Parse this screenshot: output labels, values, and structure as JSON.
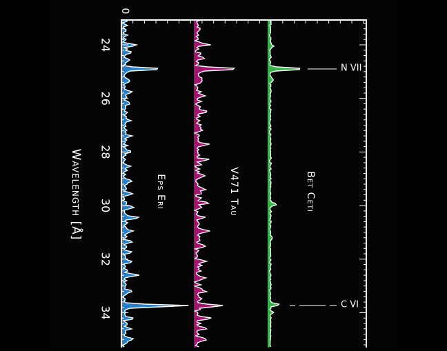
{
  "colors": {
    "background": "#000000",
    "frame": "#ffffff",
    "eps_eri": "#2a7fc9",
    "v471_tau": "#a3146e",
    "bet_ceti": "#38b24a",
    "line": "#ffffff"
  },
  "chart_data": {
    "type": "line",
    "orientation": "rotated-90",
    "xlabel": "Wavelength [Å]",
    "ylabel": "",
    "xlim": [
      23.0,
      35.2
    ],
    "x_ticks": [
      "24",
      "26",
      "28",
      "30",
      "32",
      "34"
    ],
    "y_ticks": [
      "0"
    ],
    "grid": false,
    "series": [
      {
        "name": "Eps Eri",
        "offset": 0,
        "peaks": [
          {
            "x": 24.02,
            "h": 18
          },
          {
            "x": 24.28,
            "h": 10
          },
          {
            "x": 24.6,
            "h": 8
          },
          {
            "x": 24.9,
            "h": 56
          },
          {
            "x": 25.35,
            "h": 9
          },
          {
            "x": 25.75,
            "h": 8
          },
          {
            "x": 26.2,
            "h": 9
          },
          {
            "x": 26.8,
            "h": 8
          },
          {
            "x": 27.4,
            "h": 8
          },
          {
            "x": 28.0,
            "h": 8
          },
          {
            "x": 28.55,
            "h": 8
          },
          {
            "x": 29.1,
            "h": 10
          },
          {
            "x": 29.55,
            "h": 12
          },
          {
            "x": 30.05,
            "h": 14
          },
          {
            "x": 30.45,
            "h": 20
          },
          {
            "x": 30.95,
            "h": 10
          },
          {
            "x": 31.35,
            "h": 9
          },
          {
            "x": 31.75,
            "h": 8
          },
          {
            "x": 32.1,
            "h": 11
          },
          {
            "x": 32.6,
            "h": 20
          },
          {
            "x": 33.2,
            "h": 12
          },
          {
            "x": 33.74,
            "h": 92
          },
          {
            "x": 34.2,
            "h": 12
          },
          {
            "x": 34.6,
            "h": 9
          },
          {
            "x": 35.0,
            "h": 12
          }
        ]
      },
      {
        "name": "V471 Tau",
        "offset": 105,
        "peaks": [
          {
            "x": 24.0,
            "h": 15
          },
          {
            "x": 24.5,
            "h": 8
          },
          {
            "x": 24.9,
            "h": 62
          },
          {
            "x": 25.3,
            "h": 10
          },
          {
            "x": 25.9,
            "h": 12
          },
          {
            "x": 26.5,
            "h": 10
          },
          {
            "x": 27.1,
            "h": 9
          },
          {
            "x": 27.7,
            "h": 12
          },
          {
            "x": 28.3,
            "h": 14
          },
          {
            "x": 28.9,
            "h": 12
          },
          {
            "x": 29.4,
            "h": 10
          },
          {
            "x": 29.9,
            "h": 12
          },
          {
            "x": 30.45,
            "h": 9
          },
          {
            "x": 30.95,
            "h": 15
          },
          {
            "x": 31.5,
            "h": 12
          },
          {
            "x": 32.1,
            "h": 10
          },
          {
            "x": 32.7,
            "h": 10
          },
          {
            "x": 33.2,
            "h": 12
          },
          {
            "x": 33.74,
            "h": 36
          },
          {
            "x": 34.2,
            "h": 20
          },
          {
            "x": 34.6,
            "h": 12
          },
          {
            "x": 35.0,
            "h": 15
          }
        ]
      },
      {
        "name": "Bet Ceti",
        "offset": 212,
        "peaks": [
          {
            "x": 24.05,
            "h": 5
          },
          {
            "x": 24.9,
            "h": 52
          },
          {
            "x": 25.3,
            "h": 5
          },
          {
            "x": 29.95,
            "h": 10
          },
          {
            "x": 31.2,
            "h": 4
          },
          {
            "x": 33.7,
            "h": 14
          },
          {
            "x": 34.0,
            "h": 4
          }
        ]
      }
    ],
    "annotations": [
      {
        "label": "N VII",
        "x": 24.9
      },
      {
        "label": "C VI",
        "x": 33.74
      }
    ]
  }
}
